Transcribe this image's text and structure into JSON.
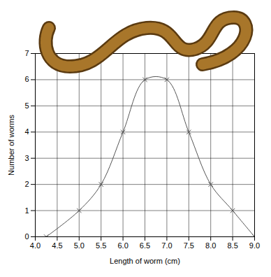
{
  "chart_data": {
    "type": "line",
    "x_label": "Length of worm (cm)",
    "y_label": "Number of worms",
    "x": [
      4.25,
      5.0,
      5.5,
      6.0,
      6.5,
      7.0,
      7.5,
      8.0,
      8.5,
      9.0
    ],
    "values": [
      0,
      1,
      2,
      4,
      6,
      6,
      4,
      2,
      1,
      0
    ],
    "color": "#555555",
    "marker": "x",
    "xlim": [
      4.0,
      9.0
    ],
    "xticks": [
      {
        "value": 4.0,
        "label": "4.0"
      },
      {
        "value": 4.5,
        "label": "4.5"
      },
      {
        "value": 5.0,
        "label": "5.0"
      },
      {
        "value": 5.5,
        "label": "5.5"
      },
      {
        "value": 6.0,
        "label": "6.0"
      },
      {
        "value": 6.5,
        "label": "6.5"
      },
      {
        "value": 7.0,
        "label": "7.0"
      },
      {
        "value": 7.5,
        "label": "7.5"
      },
      {
        "value": 8.0,
        "label": "8.0"
      },
      {
        "value": 8.5,
        "label": "8.5"
      },
      {
        "value": 9.0,
        "label": "9.0"
      }
    ],
    "ylim": [
      0,
      7
    ],
    "yticks": [
      0,
      1,
      2,
      3,
      4,
      5,
      6,
      7
    ],
    "grid": true
  }
}
